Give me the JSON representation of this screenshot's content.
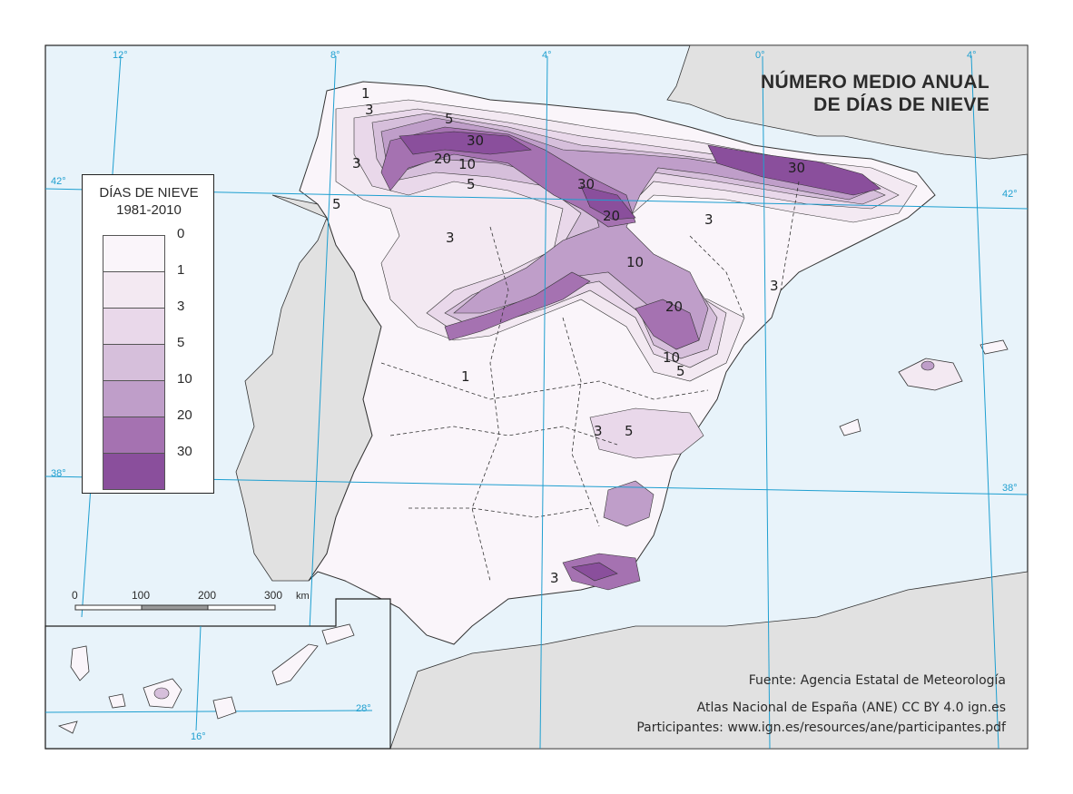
{
  "title_line1": "NÚMERO MEDIO ANUAL",
  "title_line2": "DE DÍAS DE NIEVE",
  "legend": {
    "title_line1": "DÍAS DE NIEVE",
    "title_line2": "1981-2010",
    "classes": [
      {
        "label": "0",
        "color": "#faf5fa"
      },
      {
        "label": "1",
        "color": "#f3e9f2"
      },
      {
        "label": "3",
        "color": "#e9d8ea"
      },
      {
        "label": "5",
        "color": "#d6bfdb"
      },
      {
        "label": "10",
        "color": "#bf9ec9"
      },
      {
        "label": "20",
        "color": "#a572b1"
      },
      {
        "label": "30",
        "color": "#8a4f9c"
      }
    ]
  },
  "graticule": {
    "lon_labels": [
      "12°",
      "8°",
      "4°",
      "0°",
      "4°"
    ],
    "lat_labels": [
      "42°",
      "42°",
      "38°",
      "38°"
    ],
    "canary_lon": "16°",
    "canary_lat": "28°"
  },
  "contour_labels": [
    "1",
    "3",
    "5",
    "30",
    "20",
    "10",
    "3",
    "5",
    "5",
    "30",
    "20",
    "30",
    "3",
    "10",
    "3",
    "3",
    "20",
    "10",
    "5",
    "1",
    "3",
    "5",
    "3"
  ],
  "scale_bar": {
    "ticks": [
      "0",
      "100",
      "200",
      "300"
    ],
    "unit": "km"
  },
  "source_line1": "Fuente: Agencia Estatal de Meteorología",
  "source_line2": "Atlas Nacional de España (ANE) CC BY 4.0 ign.es",
  "source_line3": "Participantes: www.ign.es/resources/ane/participantes.pdf",
  "colors": {
    "sea": "#e8f3fa",
    "foreign_land": "#e1e1e1",
    "graticule": "#1e9fd0"
  }
}
